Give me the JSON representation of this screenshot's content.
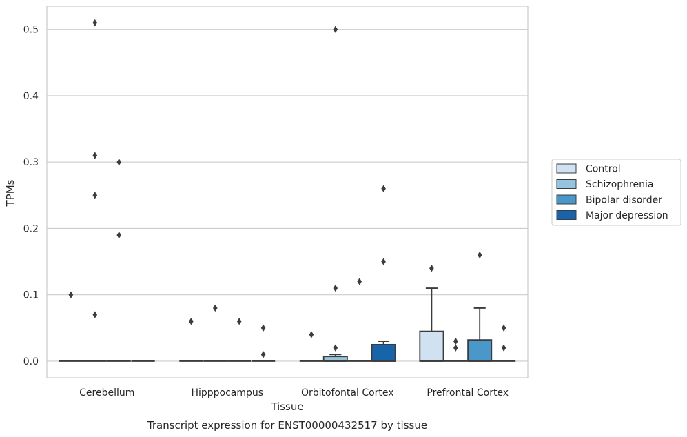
{
  "chart_data": {
    "type": "box",
    "title": "",
    "caption": "Transcript expression for ENST00000432517 by tissue",
    "xlabel": "Tissue",
    "ylabel": "TPMs",
    "ylim": [
      -0.025,
      0.535
    ],
    "yticks": [
      0.0,
      0.1,
      0.2,
      0.3,
      0.4,
      0.5
    ],
    "ytick_labels": [
      "0.0",
      "0.1",
      "0.2",
      "0.3",
      "0.4",
      "0.5"
    ],
    "grid": "horizontal",
    "legend_position": "right",
    "categories": [
      "Cerebellum",
      "Hipppocampus",
      "Orbitofontal Cortex",
      "Prefrontal Cortex"
    ],
    "series": [
      {
        "name": "Control",
        "color": "#d0e1f2",
        "boxes": [
          {
            "q1": 0,
            "median": 0,
            "q3": 0,
            "whisker_low": 0,
            "whisker_high": 0,
            "outliers": [
              0.1
            ]
          },
          {
            "q1": 0,
            "median": 0,
            "q3": 0,
            "whisker_low": 0,
            "whisker_high": 0,
            "outliers": [
              0.06
            ]
          },
          {
            "q1": 0,
            "median": 0,
            "q3": 0,
            "whisker_low": 0,
            "whisker_high": 0,
            "outliers": [
              0.04
            ]
          },
          {
            "q1": 0,
            "median": 0,
            "q3": 0.045,
            "whisker_low": 0,
            "whisker_high": 0.11,
            "outliers": [
              0.14
            ]
          }
        ]
      },
      {
        "name": "Schizophrenia",
        "color": "#94c4df",
        "boxes": [
          {
            "q1": 0,
            "median": 0,
            "q3": 0,
            "whisker_low": 0,
            "whisker_high": 0,
            "outliers": [
              0.07,
              0.25,
              0.31,
              0.51
            ]
          },
          {
            "q1": 0,
            "median": 0,
            "q3": 0,
            "whisker_low": 0,
            "whisker_high": 0,
            "outliers": [
              0.08
            ]
          },
          {
            "q1": 0,
            "median": 0,
            "q3": 0.007,
            "whisker_low": 0,
            "whisker_high": 0.01,
            "outliers": [
              0.02,
              0.11,
              0.5
            ]
          },
          {
            "q1": 0,
            "median": 0,
            "q3": 0,
            "whisker_low": 0,
            "whisker_high": 0,
            "outliers": [
              0.02,
              0.03
            ]
          }
        ]
      },
      {
        "name": "Bipolar disorder",
        "color": "#4a98c9",
        "boxes": [
          {
            "q1": 0,
            "median": 0,
            "q3": 0,
            "whisker_low": 0,
            "whisker_high": 0,
            "outliers": [
              0.19,
              0.3
            ]
          },
          {
            "q1": 0,
            "median": 0,
            "q3": 0,
            "whisker_low": 0,
            "whisker_high": 0,
            "outliers": [
              0.06
            ]
          },
          {
            "q1": 0,
            "median": 0,
            "q3": 0,
            "whisker_low": 0,
            "whisker_high": 0,
            "outliers": [
              0.12
            ]
          },
          {
            "q1": 0,
            "median": 0,
            "q3": 0.032,
            "whisker_low": 0,
            "whisker_high": 0.08,
            "outliers": [
              0.16
            ]
          }
        ]
      },
      {
        "name": "Major depression",
        "color": "#1764ab",
        "boxes": [
          {
            "q1": 0,
            "median": 0,
            "q3": 0,
            "whisker_low": 0,
            "whisker_high": 0,
            "outliers": []
          },
          {
            "q1": 0,
            "median": 0,
            "q3": 0,
            "whisker_low": 0,
            "whisker_high": 0,
            "outliers": [
              0.01,
              0.05
            ]
          },
          {
            "q1": 0,
            "median": 0,
            "q3": 0.025,
            "whisker_low": 0,
            "whisker_high": 0.03,
            "outliers": [
              0.15,
              0.26
            ]
          },
          {
            "q1": 0,
            "median": 0,
            "q3": 0,
            "whisker_low": 0,
            "whisker_high": 0,
            "outliers": [
              0.02,
              0.05
            ]
          }
        ]
      }
    ]
  }
}
